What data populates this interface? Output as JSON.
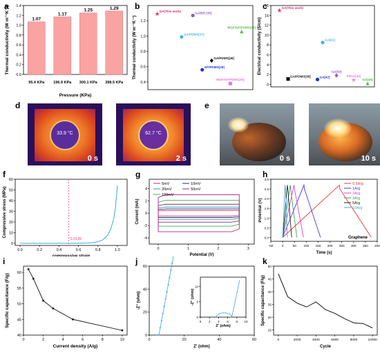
{
  "labels": {
    "a": "a",
    "b": "b",
    "c": "c",
    "d": "d",
    "e": "e",
    "f": "f",
    "g": "g",
    "h": "h",
    "i": "i",
    "j": "j",
    "k": "k"
  },
  "colors": {
    "bar": "#f9a3a3",
    "pink": "#e8457f",
    "cyan": "#37a7d9"
  },
  "chart_data": [
    {
      "id": "a",
      "type": "bar",
      "categories": [
        "95.4 KPa",
        "196.9 KPa",
        "300.1 KPa",
        "398.5 KPa"
      ],
      "values": [
        1.07,
        1.17,
        1.25,
        1.29
      ],
      "value_labels": [
        "1.07",
        "1.17",
        "1.25",
        "1.29"
      ],
      "xlabel": "Pressure (KPa)",
      "ylabel": "Thermal conductivity (W m⁻¹K⁻¹)",
      "ylim": [
        0,
        1.4
      ],
      "yticks": [
        "0.0",
        "0.2",
        "0.4",
        "0.6",
        "0.8",
        "1.0",
        "1.2",
        "1.4"
      ]
    },
    {
      "id": "b",
      "type": "scatter",
      "ylabel": "Thermal conductivity (W m⁻¹K⁻¹)",
      "ylim": [
        0.3,
        1.4
      ],
      "yticks": [
        "0.4",
        "0.6",
        "0.8",
        "1.0",
        "1.2"
      ],
      "points": [
        {
          "label": "GA(This work)",
          "x": 0.5,
          "y": 1.29,
          "color": "#d6246e",
          "marker": "star"
        },
        {
          "label": "GA/BR [35]",
          "x": 2.4,
          "y": 1.27,
          "color": "#8a5fc6",
          "marker": "circle"
        },
        {
          "label": "GA/PDMS[37]",
          "x": 1.8,
          "y": 0.99,
          "color": "#46b6e6",
          "marker": "circle"
        },
        {
          "label": "MGF/GF/PDMS[38]",
          "x": 5.0,
          "y": 1.06,
          "color": "#4cc13c",
          "marker": "tri"
        },
        {
          "label": "GA/PDMS[38]",
          "x": 3.4,
          "y": 0.68,
          "color": "#111111",
          "marker": "diamond"
        },
        {
          "label": "GF/PDMS[39]",
          "x": 2.9,
          "y": 0.56,
          "color": "#2431c8",
          "marker": "circle"
        },
        {
          "label": "MGF/GF/PDMS[40]",
          "x": 4.4,
          "y": 0.38,
          "color": "#e879d9",
          "marker": "square"
        }
      ]
    },
    {
      "id": "c",
      "type": "scatter",
      "ylabel": "Electrical conductivity (S/cm)",
      "ylim": [
        -0.5,
        16
      ],
      "yticks": [
        "0",
        "2",
        "4",
        "6",
        "8",
        "10",
        "12",
        "14",
        "16"
      ],
      "points": [
        {
          "label": "GA(This work)",
          "x": 0.5,
          "y": 15.0,
          "color": "#d6246e",
          "marker": "star"
        },
        {
          "label": "GA[41]",
          "x": 3.0,
          "y": 8.5,
          "color": "#46b6e6",
          "marker": "circle"
        },
        {
          "label": "GA/PDMS[38]",
          "x": 1.0,
          "y": 1.1,
          "color": "#111111",
          "marker": "square"
        },
        {
          "label": "GA[42]",
          "x": 2.7,
          "y": 1.0,
          "color": "#2431c8",
          "marker": "circle"
        },
        {
          "label": "GA[43]",
          "x": 3.8,
          "y": 1.8,
          "color": "#8a5fc6",
          "marker": "diamond"
        },
        {
          "label": "PI/GA[44]",
          "x": 4.8,
          "y": 0.9,
          "color": "#e879d9",
          "marker": "star"
        },
        {
          "label": "GA[45]",
          "x": 5.6,
          "y": 0.2,
          "color": "#4cc13c",
          "marker": "tri"
        }
      ]
    },
    {
      "id": "f",
      "type": "line",
      "xlabel": "compressive strain",
      "ylabel": "Compressive stress (MPa)",
      "xlim": [
        -0.05,
        1.1
      ],
      "ylim": [
        -2,
        60
      ],
      "xticks": [
        "0.0",
        "0.2",
        "0.4",
        "0.6",
        "0.8",
        "1.0"
      ],
      "yticks": [
        "0",
        "10",
        "20",
        "30",
        "40",
        "50",
        "60"
      ],
      "annotation": "0.0135",
      "marker_x": 0.5,
      "x": [
        0.0,
        0.1,
        0.2,
        0.3,
        0.4,
        0.5,
        0.6,
        0.7,
        0.75,
        0.8,
        0.85,
        0.9,
        0.93,
        0.96,
        0.98,
        1.0
      ],
      "y": [
        0.0,
        0.0,
        0.01,
        0.01,
        0.01,
        0.02,
        0.1,
        0.3,
        0.7,
        1.5,
        3.2,
        7.5,
        13,
        22,
        33,
        54
      ]
    },
    {
      "id": "g",
      "type": "line",
      "xlabel": "Potential (V)",
      "ylabel": "Current (mA)",
      "xlim": [
        -0.3,
        3.2
      ],
      "ylim": [
        -5,
        5.5
      ],
      "xticks": [
        "0",
        "1",
        "2",
        "3"
      ],
      "yticks": [
        "-4",
        "-2",
        "0",
        "2",
        "4"
      ],
      "series": [
        {
          "name": "5mV",
          "color": "#e2244f",
          "amp": 0.45
        },
        {
          "name": "10mV",
          "color": "#1d2a7a",
          "amp": 0.7
        },
        {
          "name": "20mV",
          "color": "#2a9aa0",
          "amp": 1.0
        },
        {
          "name": "50mV",
          "color": "#7b2a9c",
          "amp": 1.45
        },
        {
          "name": "100mV",
          "color": "#41b34a",
          "amp": 2.1
        },
        {
          "name": "",
          "color": "#b8248a",
          "amp": 3.0
        }
      ]
    },
    {
      "id": "h",
      "type": "line",
      "xlabel": "Time (s)",
      "ylabel": "Potential (V)",
      "xlim": [
        -50,
        400
      ],
      "ylim": [
        -0.2,
        3.0
      ],
      "xticks": [
        "-50",
        "0",
        "50",
        "100",
        "150",
        "200",
        "250",
        "300",
        "350",
        "400"
      ],
      "yticks": [
        "0.0",
        "0.5",
        "1.0",
        "1.5",
        "2.0",
        "2.5",
        "3.0"
      ],
      "annotation": "Graphene",
      "series": [
        {
          "name": "0.5A/g",
          "color": "#e23a3a",
          "peak": 240,
          "end": 375
        },
        {
          "name": "1A/g",
          "color": "#3c3cd6",
          "peak": 90,
          "end": 160
        },
        {
          "name": "2A/g",
          "color": "#e040d0",
          "peak": 48,
          "end": 88
        },
        {
          "name": "3A/g",
          "color": "#3da64a",
          "peak": 32,
          "end": 60
        },
        {
          "name": "5A/g",
          "color": "#222222",
          "peak": 20,
          "end": 38
        },
        {
          "name": "10A/g",
          "color": "#3fa9d8",
          "peak": 10,
          "end": 20
        }
      ]
    },
    {
      "id": "i",
      "type": "line",
      "xlabel": "Current density (A/g)",
      "ylabel": "Specific capacitance (F/g)",
      "xlim": [
        0,
        10.5
      ],
      "ylim": [
        40,
        62
      ],
      "xticks": [
        "0",
        "2",
        "4",
        "6",
        "8",
        "10"
      ],
      "yticks": [
        "40",
        "45",
        "50",
        "55",
        "60"
      ],
      "x": [
        0.5,
        1,
        2,
        3,
        5,
        10
      ],
      "y": [
        61,
        58,
        51,
        48.5,
        45,
        41.5
      ]
    },
    {
      "id": "j",
      "type": "line",
      "xlabel": "Z' (ohm)",
      "ylabel": "-Z'' (ohm)",
      "xlim": [
        0,
        60
      ],
      "ylim": [
        0,
        60
      ],
      "xticks": [
        "0",
        "20",
        "40",
        "60"
      ],
      "yticks": [
        "0",
        "20",
        "40",
        "60"
      ],
      "inset": {
        "xlabel": "Z' (ohm)",
        "ylabel": "-Z'' (ohm)",
        "xticks": [
          "0",
          "2",
          "4",
          "6",
          "8",
          "10"
        ],
        "yticks": [
          "0",
          "5",
          "10"
        ]
      }
    },
    {
      "id": "k",
      "type": "line",
      "xlabel": "Cycle",
      "ylabel": "Specific capacitance (F/g)",
      "xlim": [
        -500,
        10500
      ],
      "ylim": [
        23,
        50
      ],
      "xticks": [
        "0",
        "2000",
        "4000",
        "6000",
        "8000",
        "10000"
      ],
      "yticks": [
        "25",
        "30",
        "35",
        "40",
        "45",
        "50"
      ],
      "x": [
        0,
        1000,
        2000,
        3000,
        4000,
        5000,
        6000,
        7000,
        8000,
        9000,
        10000
      ],
      "y": [
        47,
        38,
        35.5,
        34,
        36,
        33,
        31.5,
        29.5,
        27.8,
        27.5,
        25.8
      ]
    }
  ],
  "photos": {
    "d_left": {
      "temp": "33.9 °C",
      "time": "0 s"
    },
    "d_right": {
      "temp": "62.7 °C",
      "time": "2 s"
    },
    "e_left": {
      "time": "0 s"
    },
    "e_right": {
      "time": "10 s"
    }
  }
}
